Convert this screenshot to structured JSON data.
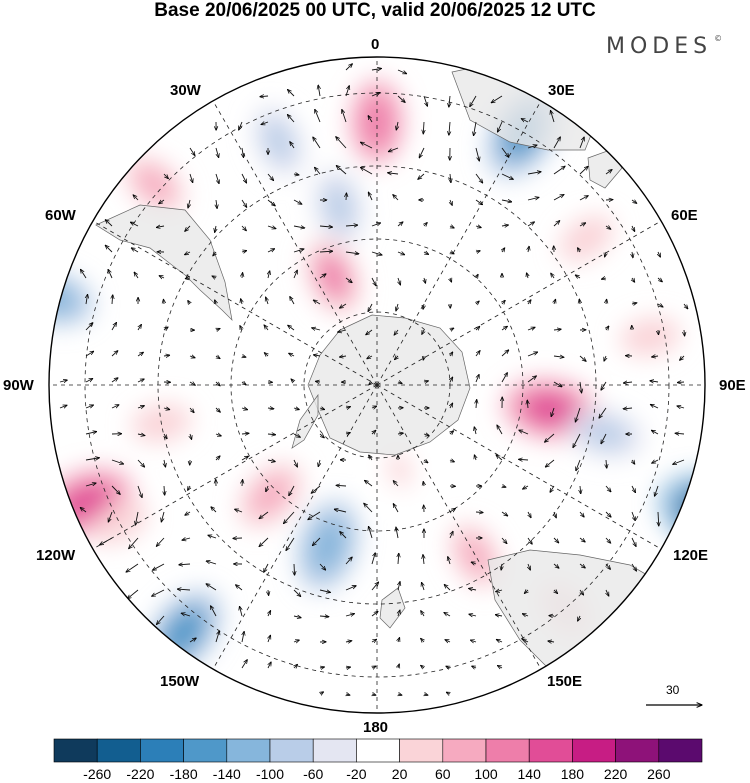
{
  "title": "Base 20/06/2025 00 UTC, valid 20/06/2025 12 UTC",
  "brand": {
    "name": "MODES",
    "mark": "©"
  },
  "longitude_labels": {
    "lon_0": "0",
    "lon_30e": "30E",
    "lon_60e": "60E",
    "lon_90e": "90E",
    "lon_120e": "120E",
    "lon_150e": "150E",
    "lon_180": "180",
    "lon_150w": "150W",
    "lon_120w": "120W",
    "lon_90w": "90W",
    "lon_60w": "60W",
    "lon_30w": "30W"
  },
  "reference_vector": {
    "label": "30"
  },
  "colorbar": {
    "ticks": [
      "-260",
      "-220",
      "-180",
      "-140",
      "-100",
      "-60",
      "-20",
      "20",
      "60",
      "100",
      "140",
      "180",
      "220",
      "260"
    ],
    "colors": [
      "#0f3a5c",
      "#125e90",
      "#2c7fb8",
      "#4f98c9",
      "#86b6dc",
      "#b9cde8",
      "#e4e6f2",
      "#ffffff",
      "#fad4d8",
      "#f6aac0",
      "#ee7eaa",
      "#e14d97",
      "#c71d84",
      "#8e1279",
      "#5b0a6e"
    ]
  },
  "anomalies": [
    {
      "lon": 0,
      "colat": 36,
      "value": 115
    },
    {
      "lon": -22,
      "colat": 36,
      "value": -80
    },
    {
      "lon": 30,
      "colat": 40,
      "value": -160
    },
    {
      "lon": -48,
      "colat": 41,
      "value": 70
    },
    {
      "lon": -12,
      "colat": 25,
      "value": -90
    },
    {
      "lon": -22,
      "colat": 16,
      "value": 100
    },
    {
      "lon": 55,
      "colat": 35,
      "value": 40
    },
    {
      "lon": 80,
      "colat": 38,
      "value": 40
    },
    {
      "lon": -75,
      "colat": 46,
      "value": -110
    },
    {
      "lon": -85,
      "colat": 60,
      "value": -80
    },
    {
      "lon": -112,
      "colat": 43,
      "value": 160
    },
    {
      "lon": -142,
      "colat": 43,
      "value": -150
    },
    {
      "lon": 98,
      "colat": 24,
      "value": 150
    },
    {
      "lon": 111,
      "colat": 50,
      "value": -230
    },
    {
      "lon": 102,
      "colat": 32,
      "value": -90
    },
    {
      "lon": 150,
      "colat": 27,
      "value": 70
    },
    {
      "lon": 140,
      "colat": 40,
      "value": 40
    },
    {
      "lon": -163,
      "colat": 23,
      "value": -140
    },
    {
      "lon": -136,
      "colat": 21,
      "value": 90
    },
    {
      "lon": -118,
      "colat": 40,
      "value": 40
    },
    {
      "lon": -100,
      "colat": 30,
      "value": 40
    },
    {
      "lon": 165,
      "colat": 12,
      "value": 30
    }
  ]
}
